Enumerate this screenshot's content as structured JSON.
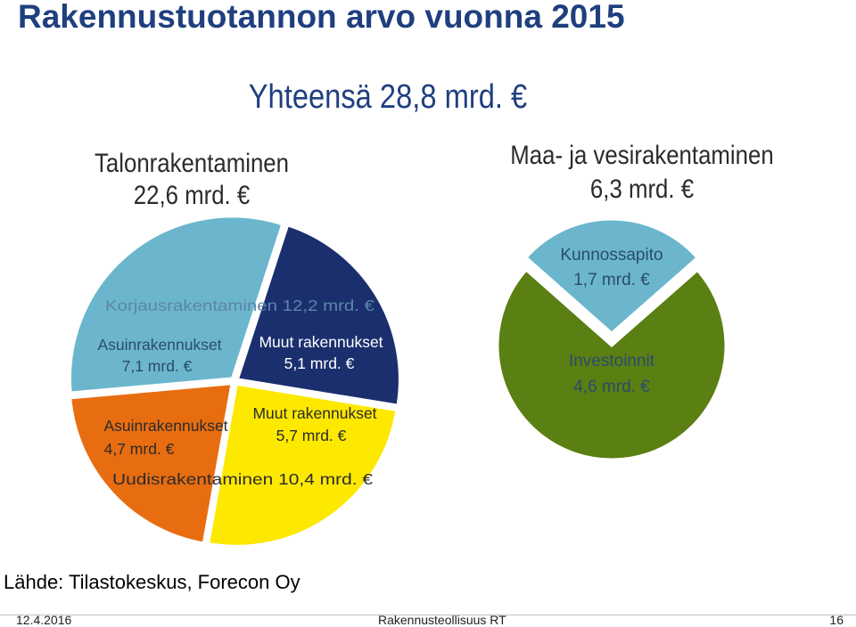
{
  "page": {
    "title": "Rakennustuotannon arvo vuonna 2015",
    "total": "Yhteensä 28,8 mrd. €",
    "talo_title_line1": "Talonrakentaminen",
    "talo_title_line2": "22,6 mrd. €",
    "maa_title_line1": "Maa- ja vesirakentaminen",
    "maa_title_line2": "6,3 mrd. €",
    "source": "Lähde: Tilastokeskus, Forecon Oy",
    "footer_date": "12.4.2016",
    "footer_org": "Rakennusteollisuus RT",
    "footer_page": "16"
  },
  "chart_data": [
    {
      "type": "pie",
      "title": "Talonrakentaminen 22,6 mrd. €",
      "unit": "mrd. €",
      "slices": [
        {
          "group": "Korjausrakentaminen 12,2 mrd. €",
          "label_line1": "Muut rakennukset",
          "label_line2": "5,1 mrd. €",
          "value": 5.1,
          "color": "#1b2f6e"
        },
        {
          "group": "Uudisrakentaminen 10,4 mrd. €",
          "label_line1": "Muut rakennukset",
          "label_line2": "5,7 mrd. €",
          "value": 5.7,
          "color": "#fde800"
        },
        {
          "group": "Uudisrakentaminen 10,4 mrd. €",
          "label_line1": "Asuinrakennukset",
          "label_line2": "4,7 mrd. €",
          "value": 4.7,
          "color": "#e86d10"
        },
        {
          "group": "Korjausrakentaminen 12,2 mrd. €",
          "label_line1": "Asuinrakennukset",
          "label_line2": "7,1 mrd. €",
          "value": 7.1,
          "color": "#6bb6cd"
        }
      ],
      "group_labels": [
        "Korjausrakentaminen 12,2 mrd. €",
        "Uudisrakentaminen 10,4 mrd. €"
      ]
    },
    {
      "type": "pie",
      "title": "Maa- ja vesirakentaminen 6,3 mrd. €",
      "unit": "mrd. €",
      "slices": [
        {
          "label_line1": "Kunnossapito",
          "label_line2": "1,7 mrd. €",
          "value": 1.7,
          "color": "#6bb6cd"
        },
        {
          "label_line1": "Investoinnit",
          "label_line2": "4,6 mrd. €",
          "value": 4.6,
          "color": "#5a7f12"
        }
      ]
    }
  ]
}
